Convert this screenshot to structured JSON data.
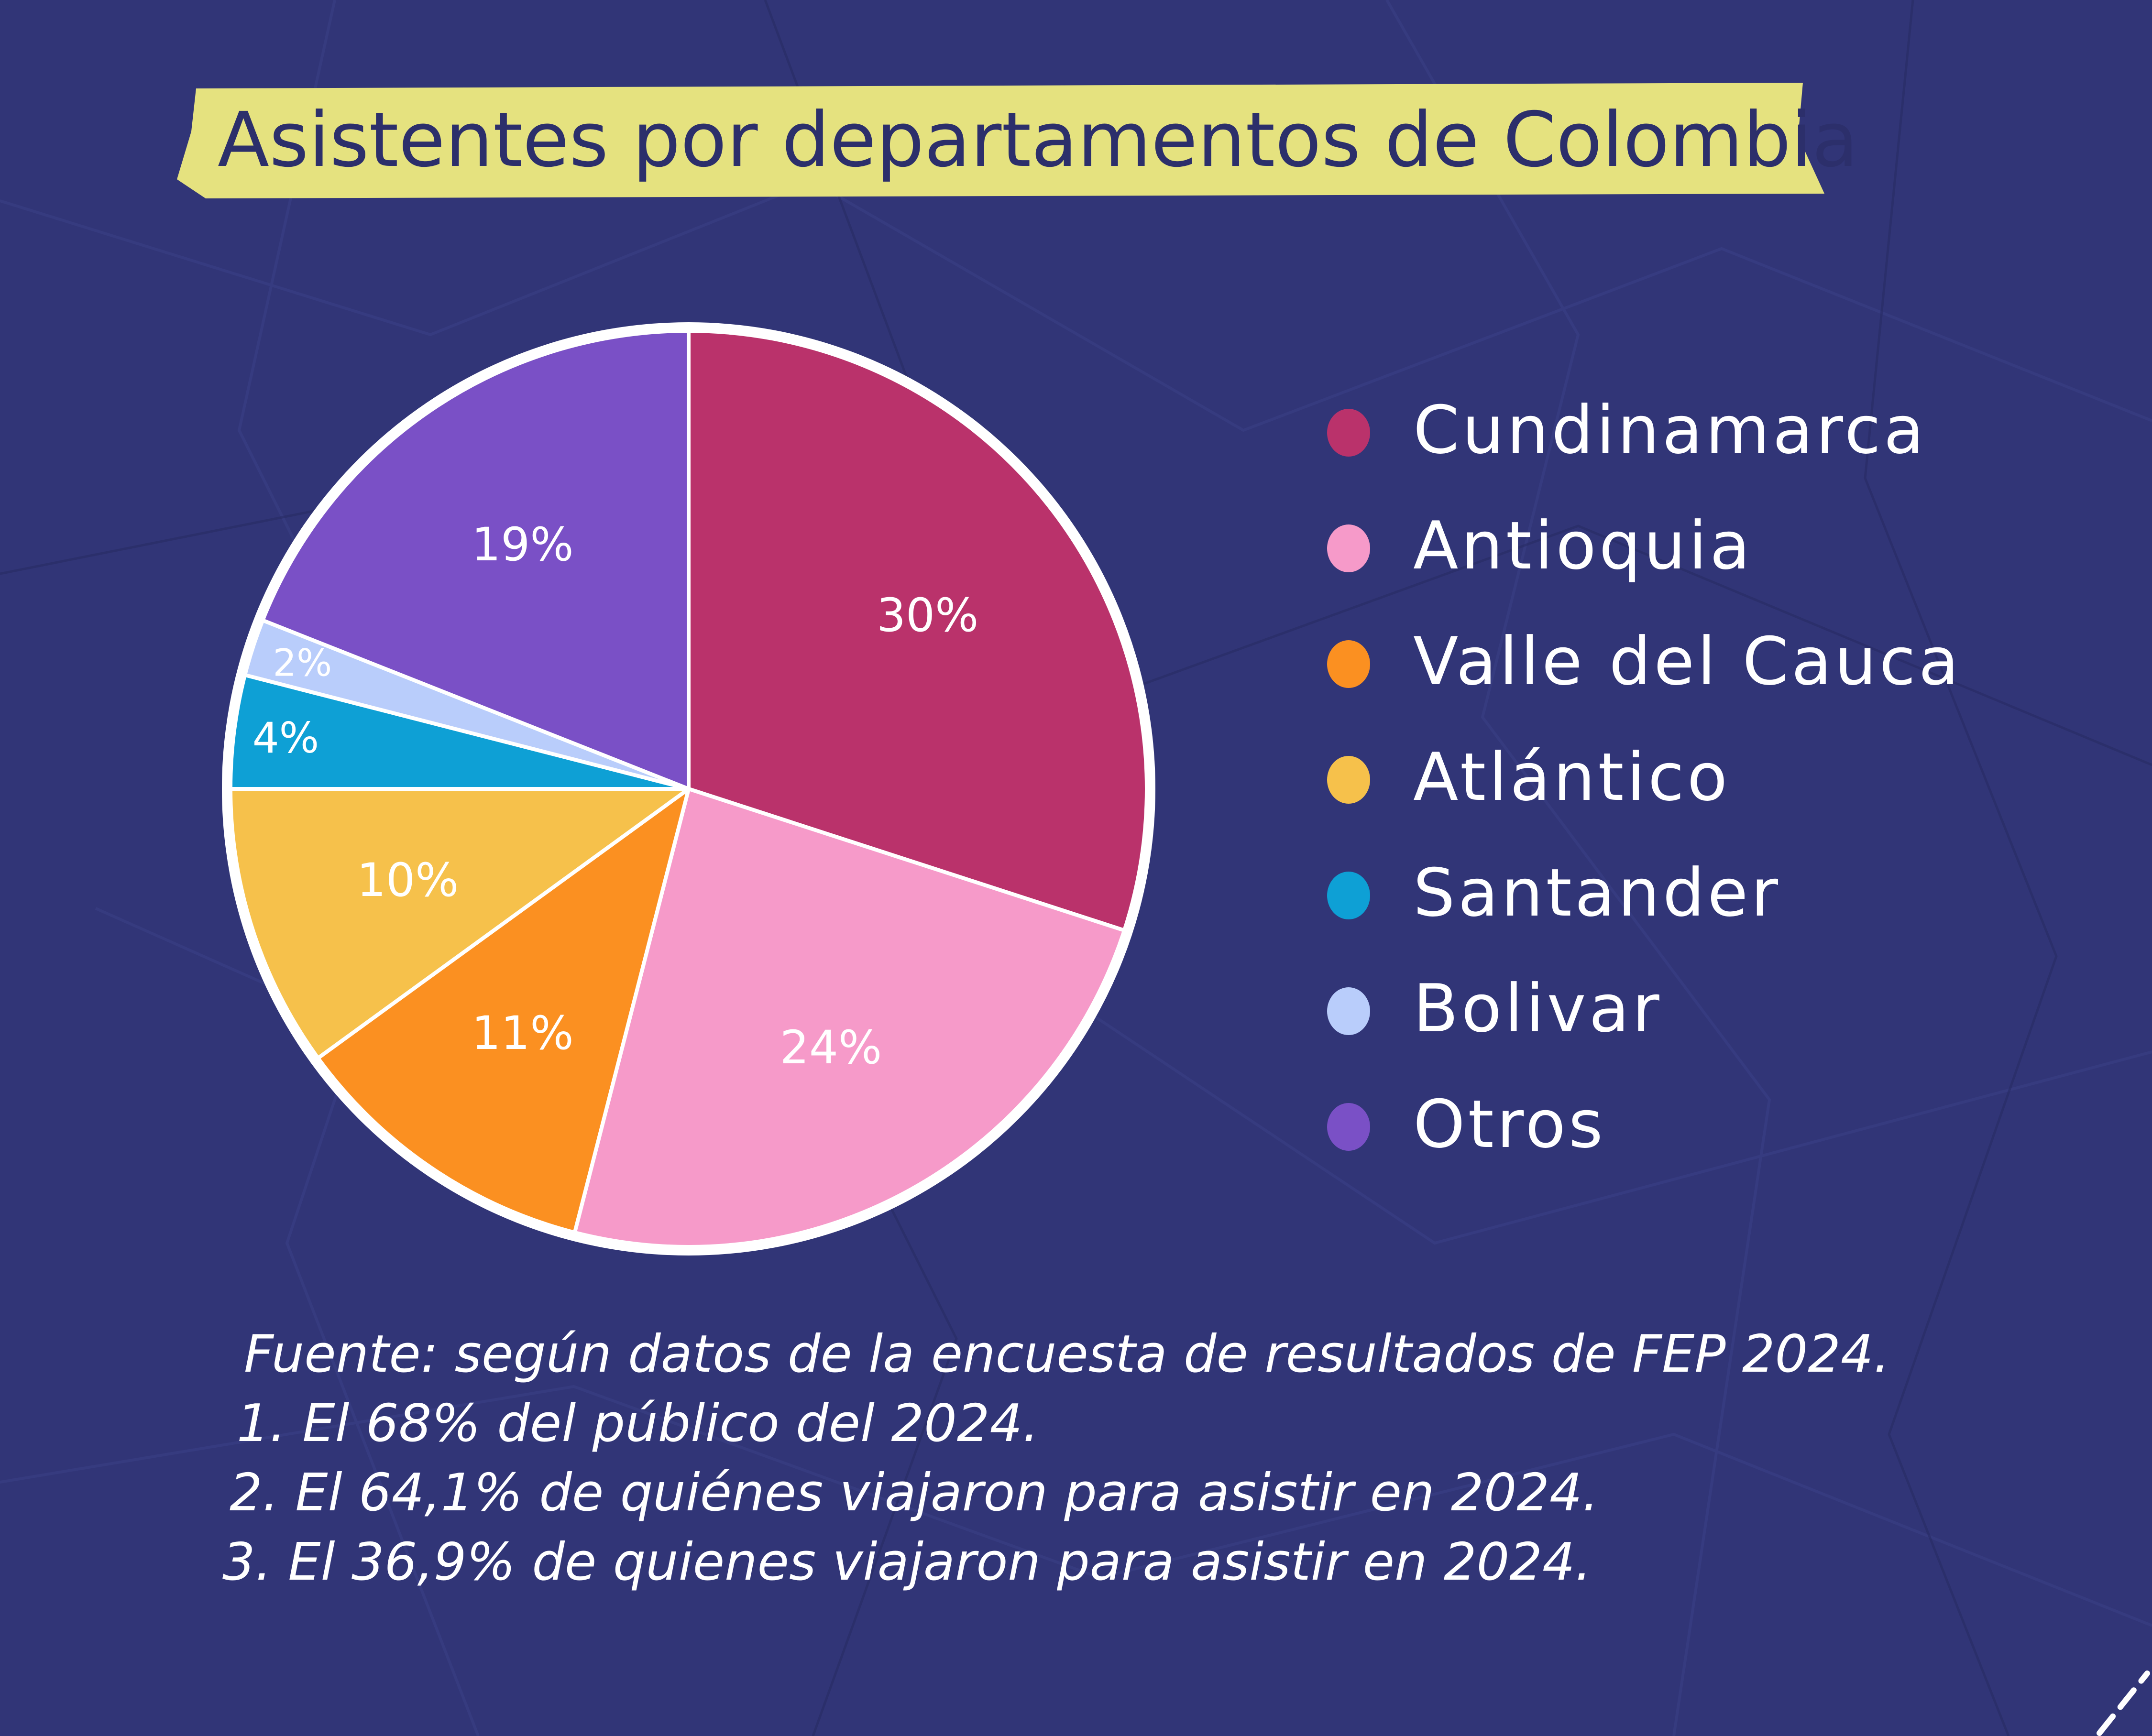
{
  "title": "Asistentes por departamentos de Colombia",
  "colors": {
    "background": "#313577",
    "banner": "#e5e27f",
    "title_text": "#2c2f6b",
    "outline": "#ffffff"
  },
  "chart_data": {
    "type": "pie",
    "title": "Asistentes por departamentos de Colombia",
    "legend_position": "right",
    "slices": [
      {
        "name": "Cundinamarca",
        "value": 30,
        "label": "30%",
        "color": "#ba326b"
      },
      {
        "name": "Antioquia",
        "value": 24,
        "label": "24%",
        "color": "#f69ac9"
      },
      {
        "name": "Valle del Cauca",
        "value": 11,
        "label": "11%",
        "color": "#fb9021"
      },
      {
        "name": "Atlántico",
        "value": 10,
        "label": "10%",
        "color": "#f6c14b"
      },
      {
        "name": "Santander",
        "value": 4,
        "label": "4%",
        "color": "#0ea0d5"
      },
      {
        "name": "Bolivar",
        "value": 2,
        "label": "2%",
        "color": "#b9cdfb"
      },
      {
        "name": "Otros",
        "value": 19,
        "label": "19%",
        "color": "#7a50c6"
      }
    ]
  },
  "footnotes": {
    "source": "Fuente: según datos de la encuesta de resultados de FEP 2024.",
    "items": [
      "1.  El 68% del público del 2024.",
      "2. El 64,1% de quiénes viajaron para asistir en 2024.",
      "3. El 36,9% de quienes viajaron para asistir en 2024."
    ]
  }
}
